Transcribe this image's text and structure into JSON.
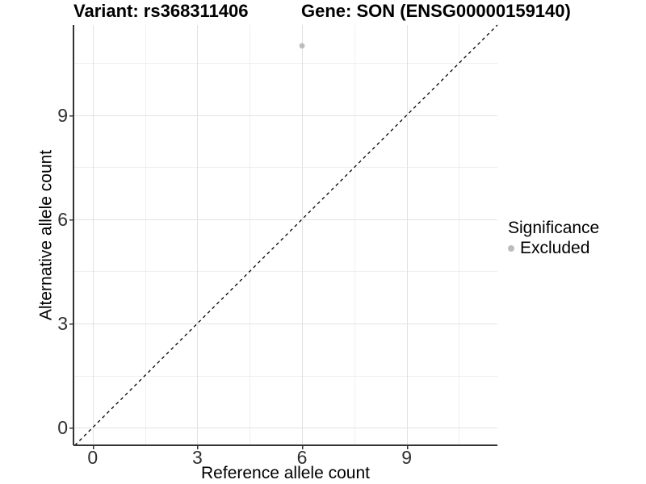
{
  "titles": {
    "variant": "Variant: rs368311406",
    "gene": "Gene: SON (ENSG00000159140)"
  },
  "axes": {
    "x_label": "Reference allele count",
    "y_label": "Alternative allele count"
  },
  "legend": {
    "title": "Significance",
    "items": [
      {
        "label": "Excluded",
        "color": "#bdbdbd"
      }
    ]
  },
  "colors": {
    "background": "#ffffff",
    "axis_line": "#333333",
    "tick_text": "#303030",
    "grid_major": "#e2e2e2",
    "grid_minor": "#efefef",
    "identity_line": "#000000",
    "point": "#bdbdbd"
  },
  "chart_data": {
    "type": "scatter",
    "title": "Variant: rs368311406 | Gene: SON (ENSG00000159140)",
    "xlabel": "Reference allele count",
    "ylabel": "Alternative allele count",
    "x_ticks": [
      0,
      3,
      6,
      9
    ],
    "y_ticks": [
      0,
      3,
      6,
      9
    ],
    "x_minor_ticks": [
      1.5,
      4.5,
      7.5,
      10.5
    ],
    "y_minor_ticks": [
      1.5,
      4.5,
      7.5,
      10.5
    ],
    "xlim": [
      -0.55,
      11.6
    ],
    "ylim": [
      -0.51,
      11.6
    ],
    "grid": true,
    "legend_position": "right",
    "series": [
      {
        "name": "Excluded",
        "color": "#bdbdbd",
        "points": [
          {
            "x": 6,
            "y": 11
          }
        ]
      }
    ],
    "reference_line": {
      "type": "identity y=x",
      "style": "dashed",
      "color": "#000000"
    }
  }
}
